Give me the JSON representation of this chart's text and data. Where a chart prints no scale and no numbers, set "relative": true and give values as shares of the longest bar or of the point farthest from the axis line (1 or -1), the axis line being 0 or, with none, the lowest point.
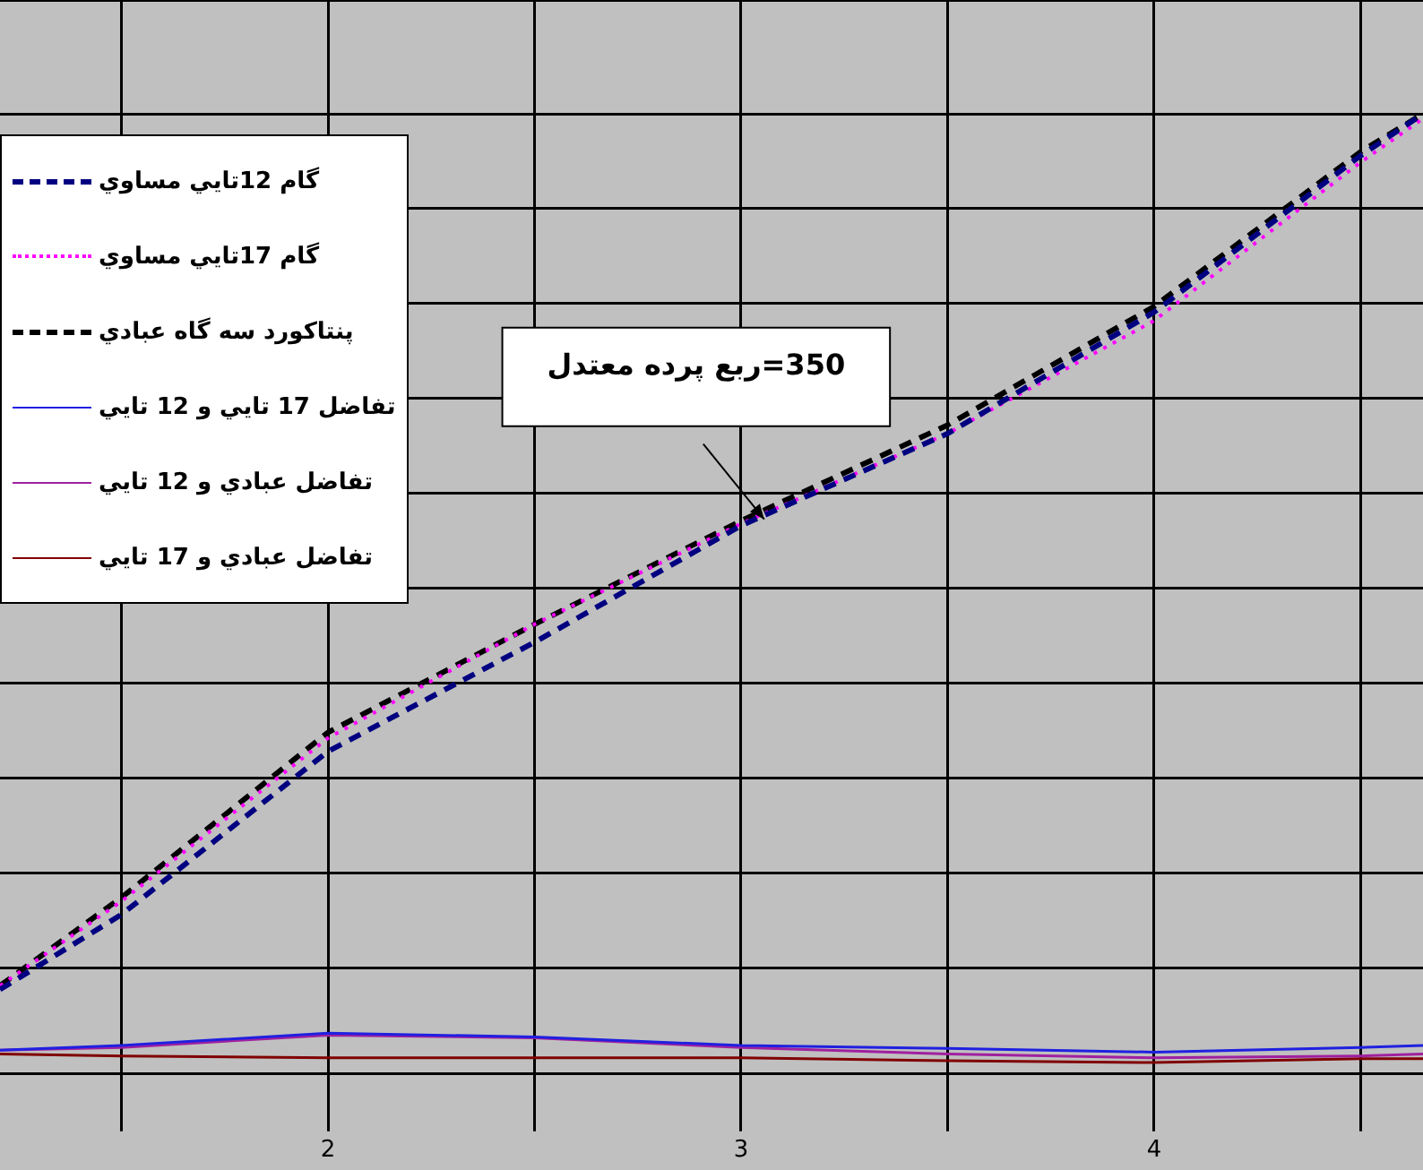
{
  "chart_data": {
    "type": "line",
    "relative": true,
    "x": [
      1.206,
      1.5,
      2,
      2.5,
      3,
      3.5,
      4,
      4.5,
      4.651
    ],
    "xlim": [
      1.206,
      4.651
    ],
    "xticks": [
      {
        "value": 1.5,
        "label": null
      },
      2,
      {
        "value": 2.5,
        "label": null
      },
      3,
      {
        "value": 3.5,
        "label": null
      },
      4,
      {
        "value": 4.5,
        "label": null
      }
    ],
    "grid": true,
    "legend": "top left",
    "marker": "none",
    "series": [
      {
        "name": "گام 12تايي مساوي",
        "color": "#000080",
        "line_style": "dashed",
        "values": [
          0.077,
          0.156,
          0.328,
          0.443,
          0.566,
          0.663,
          0.791,
          0.956,
          1
        ]
      },
      {
        "name": "گام 17تايي مساوي",
        "color": "#ff00ff",
        "line_style": "dotted",
        "values": [
          0.081,
          0.17,
          0.342,
          0.462,
          0.568,
          0.663,
          0.782,
          0.949,
          0.995
        ]
      },
      {
        "name": "پنتاکورد سه گاه عبادي",
        "color": "#000000",
        "line_style": "dashed",
        "values": [
          0.081,
          0.174,
          0.348,
          0.462,
          0.571,
          0.672,
          0.797,
          0.96,
          1
        ]
      },
      {
        "name": "تفاضل 17 تايي و 12 تايي",
        "color": "#2020e0",
        "line_style": "solid",
        "values": [
          0.013,
          0.018,
          0.031,
          0.027,
          0.018,
          0.015,
          0.011,
          0.016,
          0.018
        ]
      },
      {
        "name": "تفاضل عبادي و 12 تايي",
        "color": "#a020a0",
        "line_style": "solid",
        "values": [
          0.013,
          0.016,
          0.029,
          0.026,
          0.016,
          0.009,
          0.005,
          0.007,
          0.009
        ]
      },
      {
        "name": "تفاضل عبادي و 17 تايي",
        "color": "#800000",
        "line_style": "solid",
        "values": [
          0.009,
          0.007,
          0.005,
          0.005,
          0.005,
          0.002,
          0,
          0.004,
          0.004
        ]
      }
    ],
    "annotations": [
      "350=ربع پرده معتدل"
    ]
  }
}
